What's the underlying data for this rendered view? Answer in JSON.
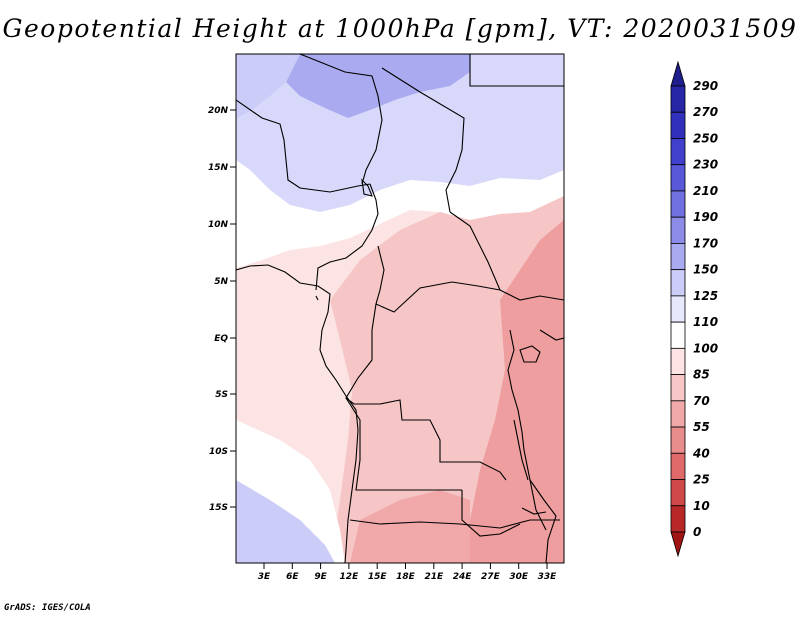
{
  "title": "Geopotential Height at 1000hPa [gpm], VT: 2020031509",
  "credit": "GrADS: IGES/COLA",
  "map": {
    "lat_labels": [
      "20N",
      "15N",
      "10N",
      "5N",
      "EQ",
      "5S",
      "10S",
      "15S"
    ],
    "lon_labels": [
      "3E",
      "6E",
      "9E",
      "12E",
      "15E",
      "18E",
      "21E",
      "24E",
      "27E",
      "30E",
      "33E"
    ],
    "field_description": "1000hPa geopotential height over Central Africa"
  },
  "colorbar": {
    "levels": [
      "290",
      "270",
      "250",
      "230",
      "210",
      "190",
      "170",
      "150",
      "125",
      "110",
      "100",
      "85",
      "70",
      "55",
      "40",
      "25",
      "10",
      "0"
    ],
    "colors": [
      "#1e1e8c",
      "#2626a6",
      "#3030bc",
      "#4040cc",
      "#5858d8",
      "#7070e0",
      "#8c8ce8",
      "#aaaaf0",
      "#ccccf8",
      "#e8e8fc",
      "#ffffff",
      "#fce4e4",
      "#f8c8c8",
      "#f0a8a8",
      "#e88c8c",
      "#e06a6a",
      "#d04848",
      "#b82828",
      "#a01414"
    ]
  }
}
